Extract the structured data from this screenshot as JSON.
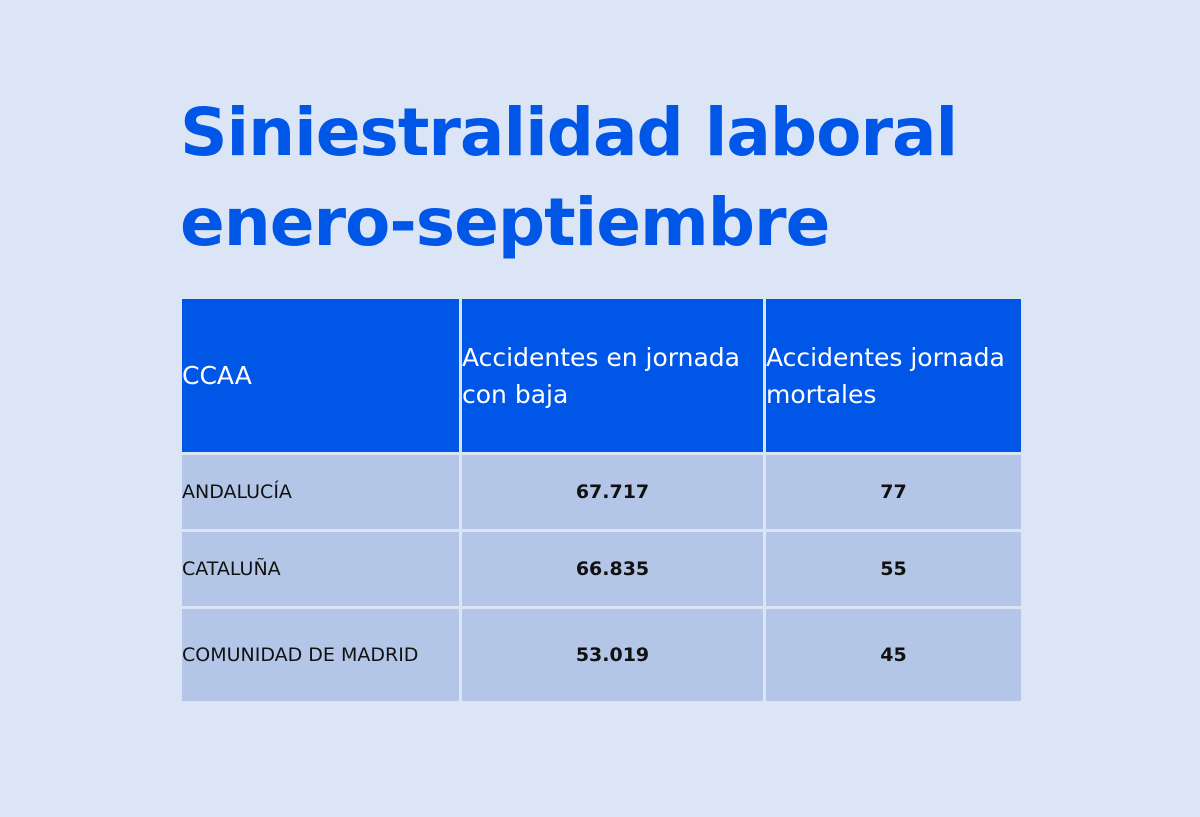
{
  "title_lines": [
    "Siniestralidad laboral",
    "enero-septiembre"
  ],
  "chart_data": {
    "type": "table",
    "title": "Siniestralidad laboral enero-septiembre",
    "columns": [
      "CCAA",
      "Accidentes en jornada con baja",
      "Accidentes jornada mortales"
    ],
    "rows": [
      [
        "ANDALUCÍA",
        "67.717",
        "77"
      ],
      [
        "CATALUÑA",
        "66.835",
        "55"
      ],
      [
        "COMUNIDAD DE MADRID",
        "53.019",
        "45"
      ]
    ]
  },
  "colors": {
    "background": "#dce5f5",
    "accent": "#0057e7",
    "header_text": "#ffffff",
    "row_fill": "#b3c6e7",
    "body_text": "#111111"
  }
}
